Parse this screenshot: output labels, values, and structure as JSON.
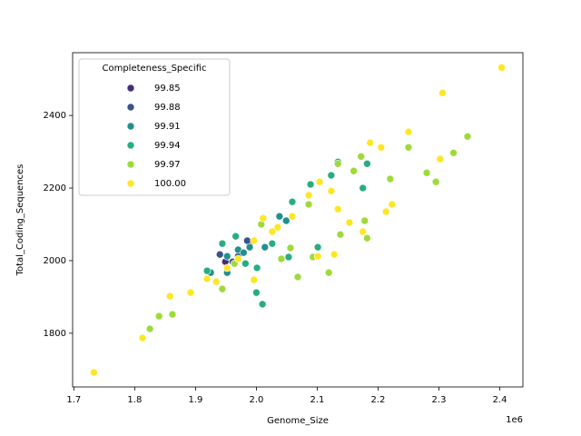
{
  "chart_data": {
    "type": "scatter",
    "x_label": "Genome_Size",
    "y_label": "Total_Coding_Sequences",
    "x_offset_label": "1e6",
    "legend_title": "Completeness_Specific",
    "legend_position": "upper left",
    "xlim": [
      1698000,
      2438000
    ],
    "ylim": [
      1652,
      2573
    ],
    "xticks": [
      {
        "value": 1700000,
        "label": "1.7"
      },
      {
        "value": 1800000,
        "label": "1.8"
      },
      {
        "value": 1900000,
        "label": "1.9"
      },
      {
        "value": 2000000,
        "label": "2.0"
      },
      {
        "value": 2100000,
        "label": "2.1"
      },
      {
        "value": 2200000,
        "label": "2.2"
      },
      {
        "value": 2300000,
        "label": "2.3"
      },
      {
        "value": 2400000,
        "label": "2.4"
      }
    ],
    "yticks": [
      1800,
      2000,
      2200,
      2400
    ],
    "series": [
      {
        "name": "99.85",
        "color": "#472c7a",
        "x": [
          1949000,
          1989000
        ],
        "y": [
          1997,
          2047
        ]
      },
      {
        "name": "99.88",
        "color": "#3b528b",
        "x": [
          1940000,
          1961000,
          1985000,
          1970000
        ],
        "y": [
          2017,
          1997,
          2055,
          2012
        ]
      },
      {
        "name": "99.91",
        "color": "#21908d",
        "x": [
          1925000,
          1952000,
          1970000,
          1989000,
          2014000,
          2038000,
          2049000,
          1952000,
          1979000
        ],
        "y": [
          1967,
          2012,
          2030,
          2037,
          2037,
          2122,
          2110,
          1967,
          2022
        ]
      },
      {
        "name": "99.94",
        "color": "#27ad81",
        "x": [
          1919000,
          1944000,
          1966000,
          1982000,
          2000000,
          2010000,
          2001000,
          2026000,
          2059000,
          2053000,
          2089000,
          2101000,
          2123000,
          2134000,
          2175000,
          2182000
        ],
        "y": [
          1972,
          2047,
          2067,
          1992,
          1912,
          1880,
          1980,
          2047,
          2162,
          2010,
          2210,
          2037,
          2235,
          2272,
          2200,
          2267
        ]
      },
      {
        "name": "99.97",
        "color": "#9fda3a",
        "x": [
          1825000,
          1840000,
          1862000,
          1944000,
          1964000,
          2008000,
          2041000,
          2056000,
          2068000,
          2093000,
          2119000,
          2138000,
          2160000,
          2172000,
          2178000,
          2182000,
          2220000,
          2250000,
          2280000,
          2324000,
          2347000,
          2295000,
          2086000,
          2134000
        ],
        "y": [
          1812,
          1847,
          1852,
          1922,
          1992,
          2100,
          2005,
          2035,
          1955,
          2010,
          1967,
          2072,
          2247,
          2287,
          2110,
          2062,
          2225,
          2312,
          2242,
          2297,
          2342,
          2217,
          2155,
          2267
        ]
      },
      {
        "name": "100.00",
        "color": "#fde725",
        "x": [
          1733000,
          1813000,
          1858000,
          1892000,
          1919000,
          1934000,
          1952000,
          1970000,
          1996000,
          2011000,
          2026000,
          2059000,
          2086000,
          2104000,
          2123000,
          2134000,
          2153000,
          2175000,
          2187000,
          2205000,
          2213000,
          2223000,
          2250000,
          2302000,
          2306000,
          2403000,
          1996000,
          2101000,
          2128000,
          2035000
        ],
        "y": [
          1692,
          1787,
          1902,
          1912,
          1950,
          1942,
          1980,
          2005,
          2055,
          2117,
          2080,
          2122,
          2180,
          2217,
          2192,
          2142,
          2105,
          2080,
          2325,
          2312,
          2135,
          2155,
          2355,
          2280,
          2462,
          2532,
          1947,
          2012,
          2017,
          2092
        ]
      }
    ]
  }
}
